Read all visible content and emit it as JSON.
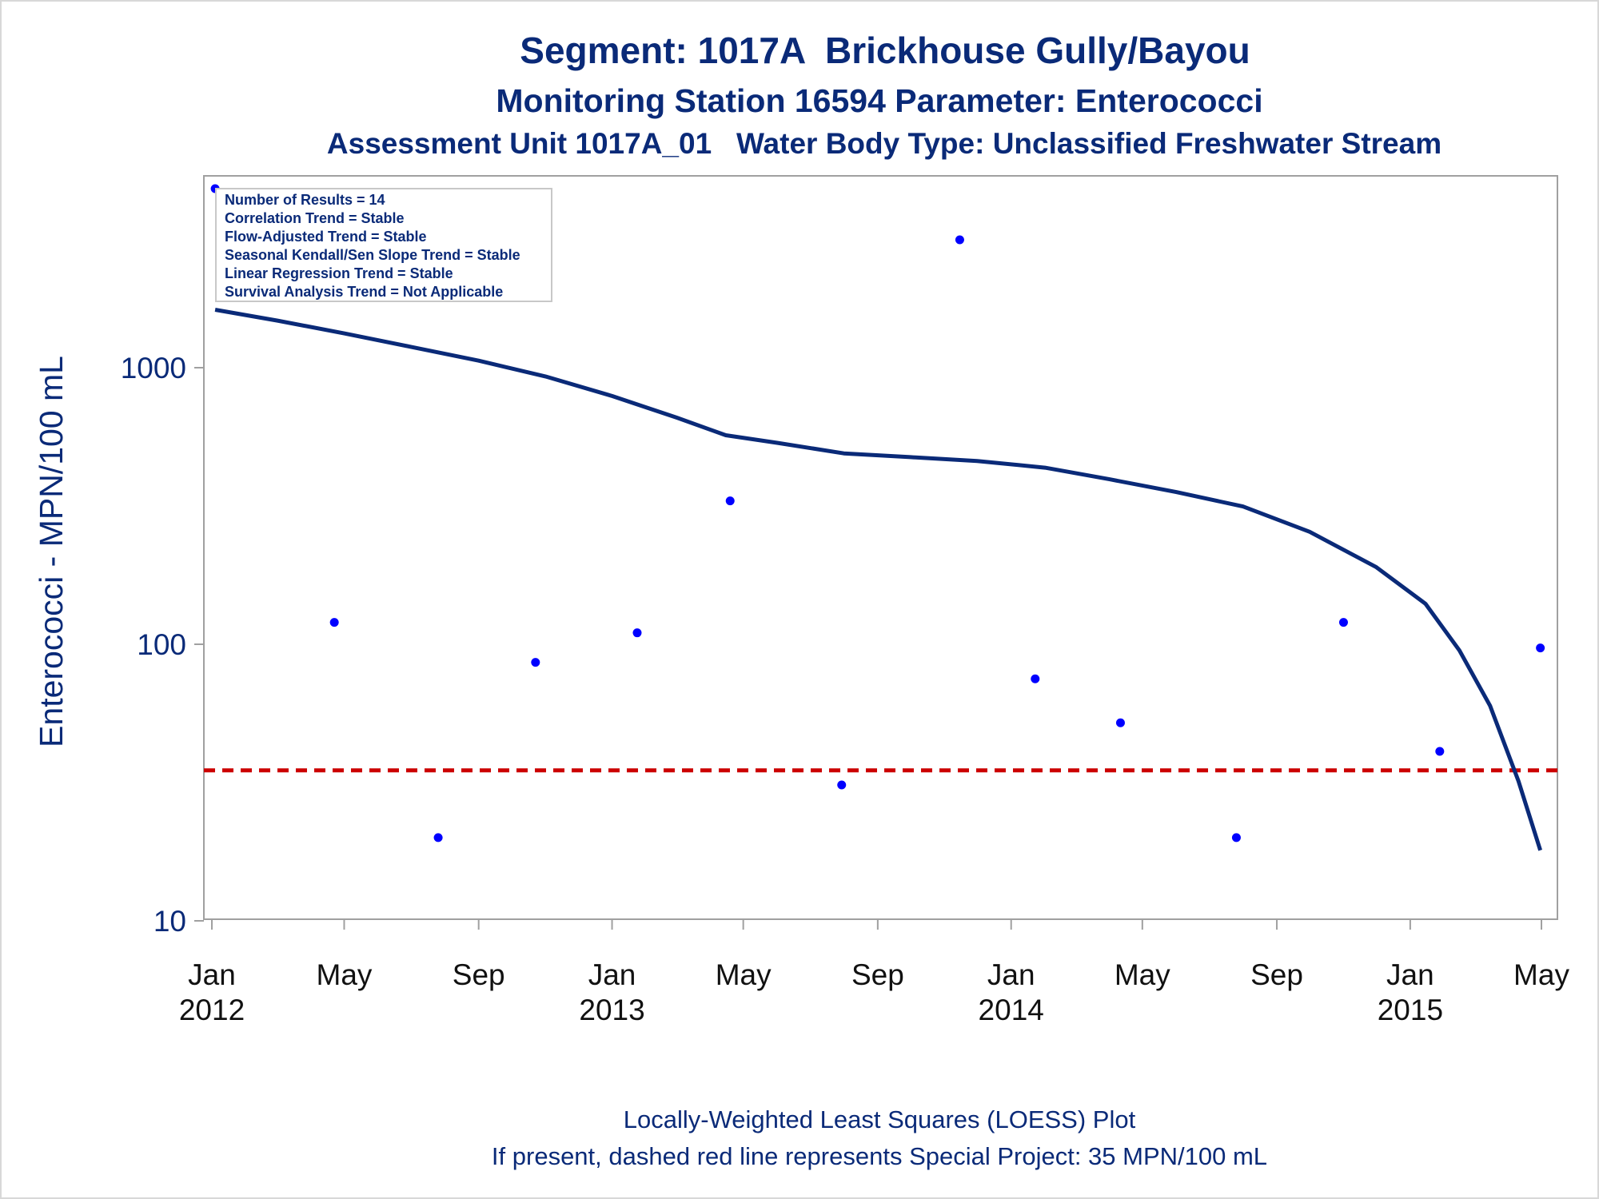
{
  "chart_data": {
    "type": "scatter",
    "title": "Segment: 1017A  Brickhouse Gully/Bayou",
    "subtitle": "Monitoring Station 16594 Parameter: Enterococci",
    "subtitle2": "Assessment Unit 1017A_01   Water Body Type: Unclassified Freshwater Stream",
    "ylabel": "Enterococci - MPN/100 mL",
    "yscale": "log",
    "ylim": [
      10,
      5000
    ],
    "yticks": [
      10,
      100,
      1000
    ],
    "xlim": [
      "2011-12-25",
      "2015-05-05"
    ],
    "xticks": [
      {
        "date": "2012-01-01",
        "month": "Jan",
        "year": "2012"
      },
      {
        "date": "2012-05-01",
        "month": "May",
        "year": ""
      },
      {
        "date": "2012-09-01",
        "month": "Sep",
        "year": ""
      },
      {
        "date": "2013-01-01",
        "month": "Jan",
        "year": "2013"
      },
      {
        "date": "2013-05-01",
        "month": "May",
        "year": ""
      },
      {
        "date": "2013-09-01",
        "month": "Sep",
        "year": ""
      },
      {
        "date": "2014-01-01",
        "month": "Jan",
        "year": "2014"
      },
      {
        "date": "2014-05-01",
        "month": "May",
        "year": ""
      },
      {
        "date": "2014-09-01",
        "month": "Sep",
        "year": ""
      },
      {
        "date": "2015-01-01",
        "month": "Jan",
        "year": "2015"
      },
      {
        "date": "2015-05-01",
        "month": "May",
        "year": ""
      }
    ],
    "points": [
      {
        "date": "2012-01-04",
        "value": 4500
      },
      {
        "date": "2012-04-22",
        "value": 120
      },
      {
        "date": "2012-07-26",
        "value": 20
      },
      {
        "date": "2012-10-23",
        "value": 86
      },
      {
        "date": "2013-01-24",
        "value": 110
      },
      {
        "date": "2013-04-19",
        "value": 330
      },
      {
        "date": "2013-07-30",
        "value": 31
      },
      {
        "date": "2013-11-15",
        "value": 2900
      },
      {
        "date": "2014-01-23",
        "value": 75
      },
      {
        "date": "2014-04-11",
        "value": 52
      },
      {
        "date": "2014-07-26",
        "value": 20
      },
      {
        "date": "2014-11-01",
        "value": 120
      },
      {
        "date": "2015-01-28",
        "value": 41
      },
      {
        "date": "2015-04-30",
        "value": 97
      }
    ],
    "loess": [
      {
        "date": "2012-01-04",
        "value": 1620
      },
      {
        "date": "2012-03-01",
        "value": 1480
      },
      {
        "date": "2012-05-01",
        "value": 1330
      },
      {
        "date": "2012-07-01",
        "value": 1190
      },
      {
        "date": "2012-09-01",
        "value": 1060
      },
      {
        "date": "2012-11-01",
        "value": 930
      },
      {
        "date": "2013-01-01",
        "value": 790
      },
      {
        "date": "2013-03-01",
        "value": 660
      },
      {
        "date": "2013-04-15",
        "value": 570
      },
      {
        "date": "2013-06-01",
        "value": 535
      },
      {
        "date": "2013-08-01",
        "value": 490
      },
      {
        "date": "2013-10-01",
        "value": 475
      },
      {
        "date": "2013-12-01",
        "value": 460
      },
      {
        "date": "2014-02-01",
        "value": 435
      },
      {
        "date": "2014-04-01",
        "value": 395
      },
      {
        "date": "2014-06-01",
        "value": 355
      },
      {
        "date": "2014-08-01",
        "value": 315
      },
      {
        "date": "2014-10-01",
        "value": 255
      },
      {
        "date": "2014-12-01",
        "value": 190
      },
      {
        "date": "2015-01-15",
        "value": 140
      },
      {
        "date": "2015-02-15",
        "value": 95
      },
      {
        "date": "2015-03-15",
        "value": 60
      },
      {
        "date": "2015-04-10",
        "value": 32
      },
      {
        "date": "2015-04-30",
        "value": 18
      }
    ],
    "reference_line": {
      "value": 35,
      "color": "#cc0000",
      "style": "dashed"
    },
    "legend_lines": [
      "Number of Results = 14",
      "Correlation Trend = Stable",
      "Flow-Adjusted Trend = Stable",
      "Seasonal Kendall/Sen Slope Trend = Stable",
      "Linear Regression Trend = Stable",
      "Survival Analysis Trend = Not Applicable"
    ],
    "legend_position": "top-left",
    "footnotes": [
      "Locally-Weighted Least Squares (LOESS) Plot",
      "If present, dashed red line represents Special Project: 35 MPN/100 mL"
    ],
    "colors": {
      "points": "#0000ff",
      "curve": "#0a2a78",
      "text": "#0a2a78",
      "axis": "#a0a0a0"
    }
  }
}
